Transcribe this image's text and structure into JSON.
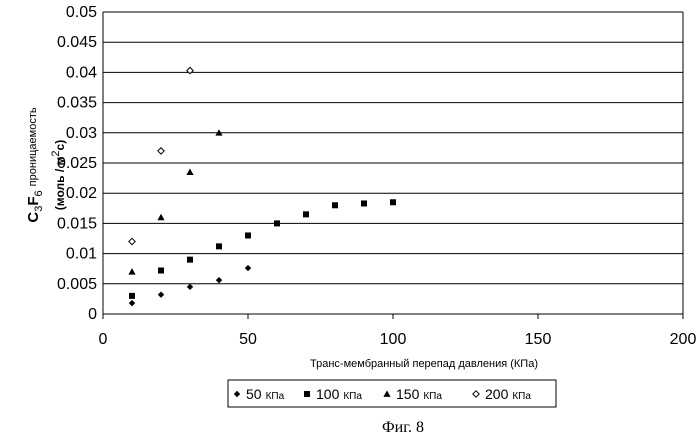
{
  "chart_data": {
    "type": "scatter",
    "xlabel": "Транс-мембранный перепад давления (КПа)",
    "ylabel": {
      "formula_main": "C",
      "formula_sub1": "3",
      "formula_main2": "F",
      "formula_sub2": "6",
      "word": "проницаемость",
      "units_prefix": "(моль / м",
      "units_sup": "2",
      "units_suffix": "с)"
    },
    "xlim": [
      0,
      200
    ],
    "ylim": [
      0,
      0.05
    ],
    "x_ticks": [
      0,
      50,
      100,
      150,
      200
    ],
    "y_ticks": [
      "0",
      "0.005",
      "0.01",
      "0.015",
      "0.02",
      "0.025",
      "0.03",
      "0.035",
      "0.04",
      "0.045",
      "0.05"
    ],
    "grid": "horizontal",
    "legend_position": "bottom",
    "series": [
      {
        "name": "50",
        "unit": "КПа",
        "marker": "diamond-filled",
        "x": [
          10,
          20,
          30,
          40,
          50
        ],
        "y": [
          0.0018,
          0.0032,
          0.0045,
          0.0056,
          0.0076
        ]
      },
      {
        "name": "100",
        "unit": "КПа",
        "marker": "square-filled",
        "x": [
          10,
          20,
          30,
          40,
          50,
          60,
          70,
          80,
          90,
          100
        ],
        "y": [
          0.003,
          0.0072,
          0.009,
          0.0112,
          0.013,
          0.015,
          0.0165,
          0.018,
          0.0183,
          0.0185
        ]
      },
      {
        "name": "150",
        "unit": "КПа",
        "marker": "triangle-filled",
        "x": [
          10,
          20,
          30,
          40
        ],
        "y": [
          0.007,
          0.016,
          0.0235,
          0.03
        ]
      },
      {
        "name": "200",
        "unit": "КПа",
        "marker": "diamond-open",
        "x": [
          10,
          20,
          30
        ],
        "y": [
          0.012,
          0.027,
          0.0403
        ]
      }
    ]
  },
  "caption": "Фиг. 8"
}
